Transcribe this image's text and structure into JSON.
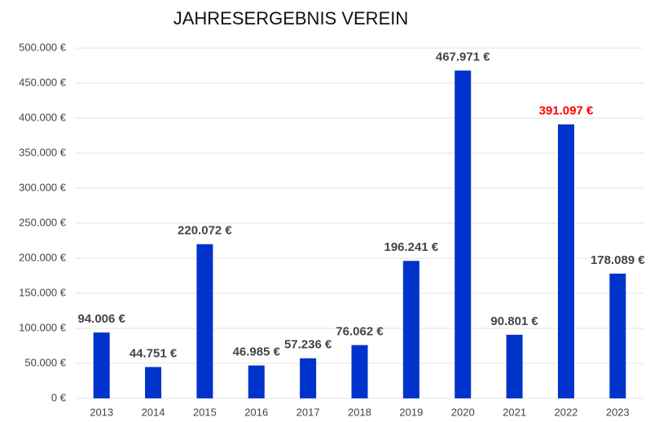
{
  "chart_data": {
    "type": "bar",
    "title": "JAHRESERGEBNIS VEREIN",
    "categories": [
      "2013",
      "2014",
      "2015",
      "2016",
      "2017",
      "2018",
      "2019",
      "2020",
      "2021",
      "2022",
      "2023"
    ],
    "values": [
      94006,
      44751,
      220072,
      46985,
      57236,
      76062,
      196241,
      467971,
      90801,
      391097,
      178089
    ],
    "value_labels": [
      "94.006 €",
      "44.751 €",
      "220.072 €",
      "46.985 €",
      "57.236 €",
      "76.062 €",
      "196.241 €",
      "467.971 €",
      "90.801 €",
      "391.097 €",
      "178.089 €"
    ],
    "value_label_colors": [
      "#444444",
      "#444444",
      "#444444",
      "#444444",
      "#444444",
      "#444444",
      "#444444",
      "#444444",
      "#444444",
      "#ff0000",
      "#444444"
    ],
    "color": "#0033cc",
    "ylim": [
      0,
      500000
    ],
    "yticks": [
      {
        "value": 0,
        "label": "0 €"
      },
      {
        "value": 50000,
        "label": "50.000 €"
      },
      {
        "value": 100000,
        "label": "100.000 €"
      },
      {
        "value": 150000,
        "label": "150.000 €"
      },
      {
        "value": 200000,
        "label": "200.000 €"
      },
      {
        "value": 250000,
        "label": "250.000 €"
      },
      {
        "value": 300000,
        "label": "300.000 €"
      },
      {
        "value": 350000,
        "label": "350.000 €"
      },
      {
        "value": 400000,
        "label": "400.000 €"
      },
      {
        "value": 450000,
        "label": "450.000 €"
      },
      {
        "value": 500000,
        "label": "500.000 €"
      }
    ],
    "grid": true
  }
}
